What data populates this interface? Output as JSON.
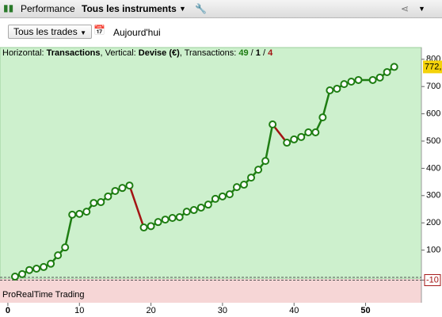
{
  "toolbar": {
    "tab": "Performance",
    "instrument": "Tous les instruments",
    "filter": "Tous les trades",
    "period": "Aujourd'hui"
  },
  "chart_data": {
    "type": "line",
    "header": [
      "Horizontal: ",
      "Transactions",
      ", Vertical: ",
      "Devise (€)",
      ", Transactions: ",
      "49",
      " / ",
      "1",
      " / ",
      "4"
    ],
    "panel_label": "ProRealTime Trading",
    "x": [
      1,
      2,
      3,
      4,
      5,
      6,
      7,
      8,
      9,
      10,
      11,
      12,
      13,
      14,
      15,
      16,
      17,
      19,
      20,
      21,
      22,
      23,
      24,
      25,
      26,
      27,
      28,
      29,
      30,
      31,
      32,
      33,
      34,
      35,
      36,
      37,
      39,
      40,
      41,
      42,
      43,
      44,
      45,
      46,
      47,
      48,
      49,
      51,
      52,
      53,
      54
    ],
    "series": [
      {
        "values": [
          3,
          12,
          27,
          32,
          38,
          50,
          81,
          110,
          230,
          233,
          241,
          273,
          276,
          297,
          317,
          328,
          337,
          183,
          188,
          203,
          212,
          218,
          221,
          241,
          247,
          256,
          267,
          288,
          297,
          305,
          331,
          340,
          366,
          395,
          427,
          561,
          494,
          506,
          515,
          532,
          532,
          587,
          686,
          692,
          709,
          718,
          724,
          724,
          733,
          753,
          772
        ],
        "up_color": "#1e7d12",
        "down_color": "#a31414"
      }
    ],
    "last_label": "772,",
    "xlim": [
      -1.1,
      57.8
    ],
    "xticks": [
      0,
      10,
      20,
      30,
      40,
      50
    ],
    "ylim": [
      -93,
      843
    ],
    "yticks": [
      -10,
      100,
      200,
      300,
      400,
      500,
      600,
      700,
      800
    ]
  }
}
